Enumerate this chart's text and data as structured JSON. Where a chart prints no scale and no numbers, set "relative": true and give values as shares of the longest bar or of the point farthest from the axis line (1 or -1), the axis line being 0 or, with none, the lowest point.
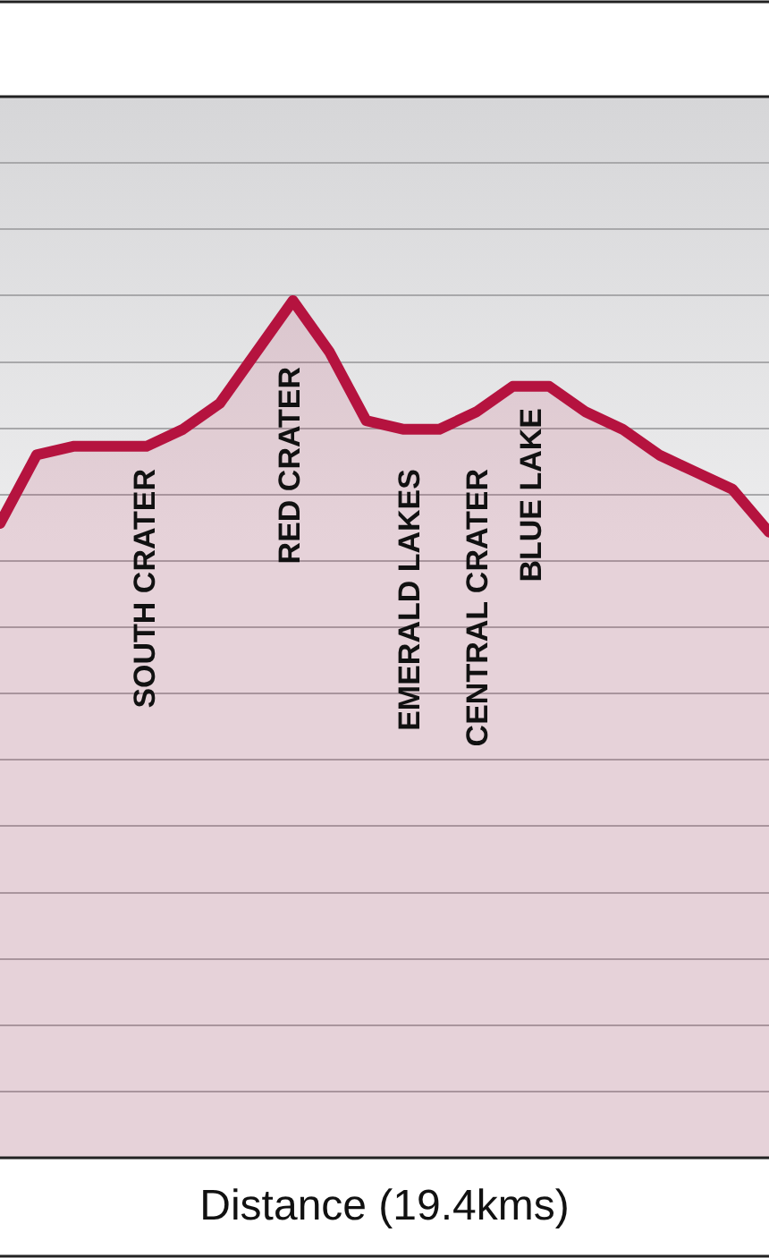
{
  "chart_data": {
    "type": "area",
    "relative": true,
    "xlabel": "Distance (19.4kms)",
    "grid": "y",
    "categories": [
      null,
      null,
      null,
      null,
      null,
      null,
      null,
      null,
      null,
      null,
      null,
      null,
      null,
      null,
      null,
      null,
      null,
      null,
      null,
      null,
      null,
      null
    ],
    "series": [
      {
        "color": "#b5133f",
        "values": [
          0.74,
          0.82,
          0.83,
          0.83,
          0.83,
          0.85,
          0.88,
          0.94,
          1,
          0.94,
          0.86,
          0.85,
          0.85,
          0.87,
          0.9,
          0.9,
          0.87,
          0.85,
          0.82,
          0.8,
          0.78,
          0.73
        ]
      }
    ],
    "annotations": [
      "SOUTH CRATER",
      "RED CRATER",
      "EMERALD LAKES",
      "CENTRAL CRATER",
      "BLUE LAKE"
    ]
  }
}
